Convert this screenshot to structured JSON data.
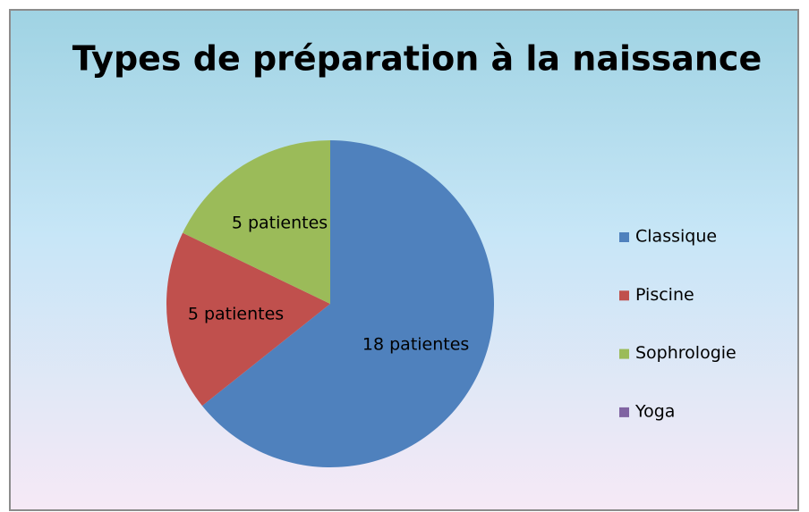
{
  "chart_data": {
    "type": "pie",
    "title": "Types de préparation à la naissance",
    "categories": [
      "Classique",
      "Piscine",
      "Sophrologie",
      "Yoga"
    ],
    "values": [
      18,
      5,
      5,
      0
    ],
    "value_labels": [
      "18 patientes",
      "5 patientes",
      "5 patientes",
      null
    ],
    "colors": [
      "#4f81bd",
      "#c0504d",
      "#9bbb59",
      "#8064a2"
    ],
    "legend": "right"
  }
}
